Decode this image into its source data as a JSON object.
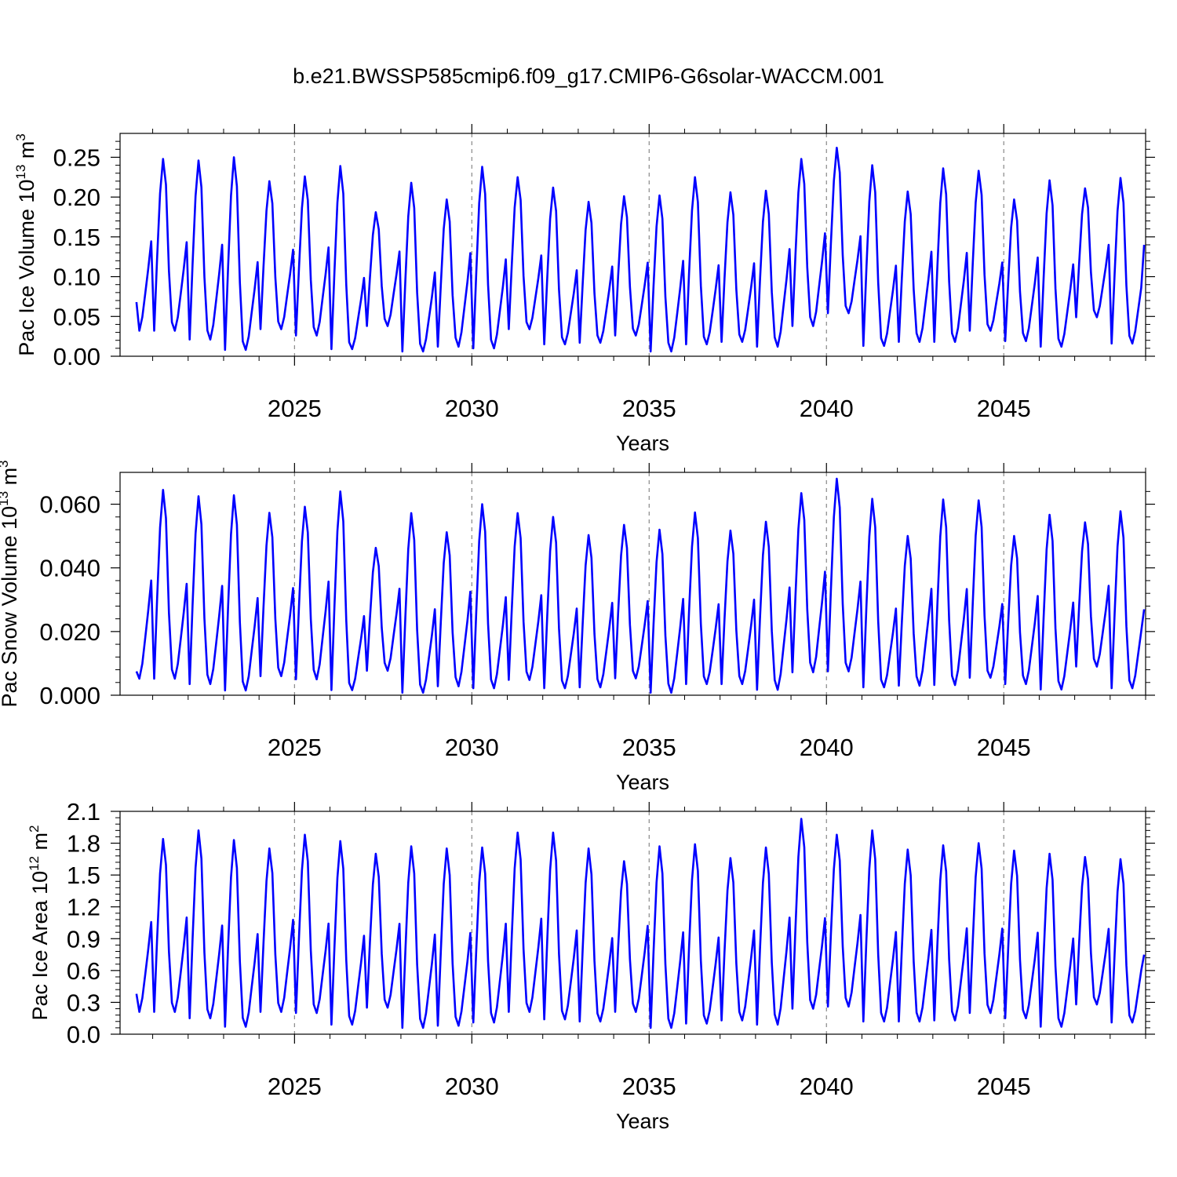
{
  "figure": {
    "title": "b.e21.BWSSP585cmip6.f09_g17.CMIP6-G6solar-WACCM.001"
  },
  "chart_data": [
    {
      "type": "line",
      "title": "",
      "xlabel": "Years",
      "ylabel": "Pac Ice Volume 10",
      "ylabel_exponent": "13",
      "ylabel_unit": " m",
      "ylabel_unit_exponent": "3",
      "xlim": [
        2020.08,
        2049.0
      ],
      "ylim": [
        0.0,
        0.28
      ],
      "xticks": [
        2025,
        2030,
        2035,
        2040,
        2045
      ],
      "xtick_labels": [
        "2025",
        "2030",
        "2035",
        "2040",
        "2045"
      ],
      "yticks": [
        0.0,
        0.05,
        0.1,
        0.15,
        0.2,
        0.25
      ],
      "ytick_labels": [
        "0.00",
        "0.05",
        "0.10",
        "0.15",
        "0.20",
        "0.25"
      ],
      "y_decimals": 2,
      "grid": "vertical dashed at major x ticks",
      "line_color": "#0000ff",
      "start_year": 2020,
      "series": [
        {
          "peaks": [
            0.248,
            0.246,
            0.25,
            0.22,
            0.226,
            0.239,
            0.181,
            0.218,
            0.197,
            0.238,
            0.225,
            0.212,
            0.194,
            0.201,
            0.202,
            0.225,
            0.206,
            0.208,
            0.248,
            0.262,
            0.24,
            0.207,
            0.236,
            0.233,
            0.197,
            0.221,
            0.211,
            0.224,
            0.21
          ],
          "troughs": [
            0.032,
            0.021,
            0.008,
            0.034,
            0.026,
            0.009,
            0.038,
            0.006,
            0.012,
            0.01,
            0.034,
            0.015,
            0.017,
            0.026,
            0.006,
            0.015,
            0.018,
            0.012,
            0.038,
            0.054,
            0.013,
            0.018,
            0.018,
            0.032,
            0.019,
            0.012,
            0.049,
            0.016,
            0.024
          ],
          "first_value": 0.068,
          "last_value": 0.14
        }
      ]
    },
    {
      "type": "line",
      "title": "",
      "xlabel": "Years",
      "ylabel": "Pac Snow Volume 10",
      "ylabel_exponent": "13",
      "ylabel_unit": " m",
      "ylabel_unit_exponent": "3",
      "xlim": [
        2020.08,
        2049.0
      ],
      "ylim": [
        0.0,
        0.07
      ],
      "xticks": [
        2025,
        2030,
        2035,
        2040,
        2045
      ],
      "xtick_labels": [
        "2025",
        "2030",
        "2035",
        "2040",
        "2045"
      ],
      "yticks": [
        0.0,
        0.02,
        0.04,
        0.06
      ],
      "ytick_labels": [
        "0.000",
        "0.020",
        "0.040",
        "0.060"
      ],
      "y_decimals": 3,
      "grid": "vertical dashed at major x ticks",
      "line_color": "#0000ff",
      "start_year": 2020,
      "series": [
        {
          "peaks": [
            0.0645,
            0.0625,
            0.0628,
            0.0573,
            0.0592,
            0.064,
            0.0463,
            0.0572,
            0.0512,
            0.06,
            0.0572,
            0.056,
            0.0503,
            0.0535,
            0.052,
            0.0574,
            0.0517,
            0.0545,
            0.0635,
            0.068,
            0.0617,
            0.05,
            0.0615,
            0.0612,
            0.05,
            0.0567,
            0.0543,
            0.0578,
            0.0518
          ],
          "troughs": [
            0.0052,
            0.0035,
            0.0015,
            0.006,
            0.005,
            0.0016,
            0.0077,
            0.0008,
            0.0028,
            0.0022,
            0.0048,
            0.0022,
            0.0025,
            0.0053,
            0.0008,
            0.0035,
            0.0035,
            0.0017,
            0.0072,
            0.0075,
            0.0025,
            0.003,
            0.0032,
            0.0055,
            0.0035,
            0.0018,
            0.009,
            0.0022,
            0.0035
          ],
          "first_value": 0.0075,
          "last_value": 0.027
        }
      ]
    },
    {
      "type": "line",
      "title": "",
      "xlabel": "Years",
      "ylabel": "Pac Ice Area 10",
      "ylabel_exponent": "12",
      "ylabel_unit": " m",
      "ylabel_unit_exponent": "2",
      "xlim": [
        2020.08,
        2049.0
      ],
      "ylim": [
        0.0,
        2.1
      ],
      "xticks": [
        2025,
        2030,
        2035,
        2040,
        2045
      ],
      "xtick_labels": [
        "2025",
        "2030",
        "2035",
        "2040",
        "2045"
      ],
      "yticks": [
        0.0,
        0.3,
        0.6,
        0.9,
        1.2,
        1.5,
        1.8,
        2.1
      ],
      "ytick_labels": [
        "0.0",
        "0.3",
        "0.6",
        "0.9",
        "1.2",
        "1.5",
        "1.8",
        "2.1"
      ],
      "y_decimals": 1,
      "grid": "vertical dashed at major x ticks",
      "line_color": "#0000ff",
      "start_year": 2020,
      "series": [
        {
          "peaks": [
            1.84,
            1.92,
            1.83,
            1.75,
            1.88,
            1.82,
            1.7,
            1.77,
            1.75,
            1.76,
            1.9,
            1.9,
            1.75,
            1.63,
            1.77,
            1.79,
            1.66,
            1.76,
            2.03,
            1.88,
            1.92,
            1.74,
            1.78,
            1.8,
            1.73,
            1.7,
            1.67,
            1.65,
            1.47
          ],
          "troughs": [
            0.21,
            0.15,
            0.07,
            0.21,
            0.2,
            0.09,
            0.25,
            0.06,
            0.08,
            0.11,
            0.21,
            0.14,
            0.12,
            0.21,
            0.06,
            0.1,
            0.13,
            0.09,
            0.24,
            0.26,
            0.12,
            0.12,
            0.13,
            0.2,
            0.15,
            0.07,
            0.28,
            0.11,
            0.13
          ],
          "first_value": 0.38,
          "last_value": 0.75
        }
      ]
    }
  ]
}
